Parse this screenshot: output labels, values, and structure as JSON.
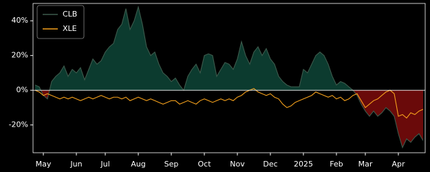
{
  "chart_data": {
    "type": "line",
    "categories": [
      null,
      null,
      "May",
      null,
      null,
      null,
      null,
      null,
      null,
      null,
      "Jun",
      null,
      null,
      null,
      null,
      null,
      null,
      "Jul",
      null,
      null,
      null,
      null,
      null,
      null,
      null,
      "Aug",
      null,
      null,
      null,
      null,
      null,
      null,
      null,
      "Sep",
      null,
      null,
      null,
      null,
      null,
      null,
      null,
      "Oct",
      null,
      null,
      null,
      null,
      null,
      null,
      null,
      "Nov",
      null,
      null,
      null,
      null,
      null,
      null,
      null,
      "Dec",
      null,
      null,
      null,
      null,
      null,
      null,
      null,
      "2025",
      null,
      null,
      null,
      null,
      null,
      null,
      null,
      "Feb",
      null,
      null,
      null,
      null,
      null,
      null,
      "Mar",
      null,
      null,
      null,
      null,
      null,
      null,
      null,
      "Apr",
      null,
      null,
      null,
      null,
      null,
      null
    ],
    "series": [
      {
        "name": "CLB",
        "color": "#3d5a4c",
        "fill_positive": "#0c3b2f",
        "fill_negative": "#6a0a0a",
        "values": [
          3,
          2,
          -3,
          -5,
          5,
          8,
          10,
          14,
          8,
          12,
          10,
          13,
          6,
          12,
          18,
          15,
          17,
          22,
          25,
          27,
          35,
          38,
          47,
          35,
          40,
          48,
          38,
          25,
          20,
          22,
          15,
          10,
          8,
          5,
          7,
          3,
          0,
          8,
          12,
          15,
          10,
          20,
          21,
          20,
          8,
          12,
          16,
          15,
          12,
          18,
          28,
          20,
          15,
          22,
          25,
          20,
          24,
          18,
          15,
          8,
          5,
          3,
          2,
          2,
          2,
          12,
          10,
          15,
          20,
          22,
          20,
          15,
          8,
          3,
          5,
          4,
          2,
          0,
          -3,
          -8,
          -12,
          -15,
          -12,
          -15,
          -13,
          -10,
          -12,
          -15,
          -25,
          -33,
          -28,
          -30,
          -27,
          -25,
          -29
        ]
      },
      {
        "name": "XLE",
        "color": "#f5a11c",
        "values": [
          0,
          -1,
          -3,
          -2,
          -3,
          -4,
          -5,
          -4,
          -5,
          -4,
          -5,
          -6,
          -5,
          -4,
          -5,
          -4,
          -3,
          -4,
          -5,
          -4,
          -4,
          -5,
          -4,
          -6,
          -5,
          -4,
          -5,
          -6,
          -5,
          -6,
          -7,
          -8,
          -7,
          -6,
          -6,
          -8,
          -7,
          -6,
          -7,
          -8,
          -6,
          -5,
          -6,
          -7,
          -6,
          -5,
          -6,
          -5,
          -6,
          -4,
          -3,
          -1,
          0,
          1,
          -1,
          -2,
          -3,
          -2,
          -4,
          -5,
          -8,
          -10,
          -9,
          -7,
          -6,
          -5,
          -4,
          -3,
          -1,
          -2,
          -3,
          -4,
          -3,
          -5,
          -4,
          -6,
          -5,
          -3,
          -2,
          -6,
          -10,
          -8,
          -6,
          -5,
          -3,
          -1,
          0,
          -2,
          -15,
          -14,
          -16,
          -13,
          -14,
          -12,
          -11
        ]
      }
    ],
    "ylim": [
      -36,
      50
    ],
    "yticks": [
      {
        "value": -20,
        "label": "-20%"
      },
      {
        "value": 0,
        "label": "0%"
      },
      {
        "value": 20,
        "label": "20%"
      },
      {
        "value": 40,
        "label": "40%"
      }
    ],
    "legend": "upper left"
  }
}
